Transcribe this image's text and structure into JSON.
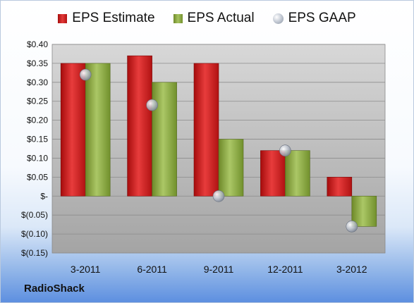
{
  "chart_data": {
    "type": "bar",
    "categories": [
      "3-2011",
      "6-2011",
      "9-2011",
      "12-2011",
      "3-2012"
    ],
    "series": [
      {
        "name": "EPS Estimate",
        "values": [
          0.35,
          0.37,
          0.35,
          0.12,
          0.05
        ],
        "color": "#c81c1c"
      },
      {
        "name": "EPS Actual",
        "values": [
          0.35,
          0.3,
          0.15,
          0.12,
          -0.08
        ],
        "color": "#8fae48"
      },
      {
        "name": "EPS GAAP",
        "values": [
          0.32,
          0.24,
          0.0,
          0.12,
          -0.08
        ],
        "color": "#b8bfca",
        "style": "marker"
      }
    ],
    "ylim": [
      -0.15,
      0.4
    ],
    "ytick_values": [
      0.4,
      0.35,
      0.3,
      0.25,
      0.2,
      0.15,
      0.1,
      0.05,
      0,
      -0.05,
      -0.1,
      -0.15
    ],
    "ytick_labels": [
      "$0.40",
      "$0.35",
      "$0.30",
      "$0.25",
      "$0.20",
      "$0.15",
      "$0.10",
      "$0.05",
      "$-",
      "$(0.05)",
      "$(0.10)",
      "$(0.15)"
    ],
    "legend_position": "top",
    "grid": true
  },
  "footer": {
    "company": "RadioShack"
  }
}
